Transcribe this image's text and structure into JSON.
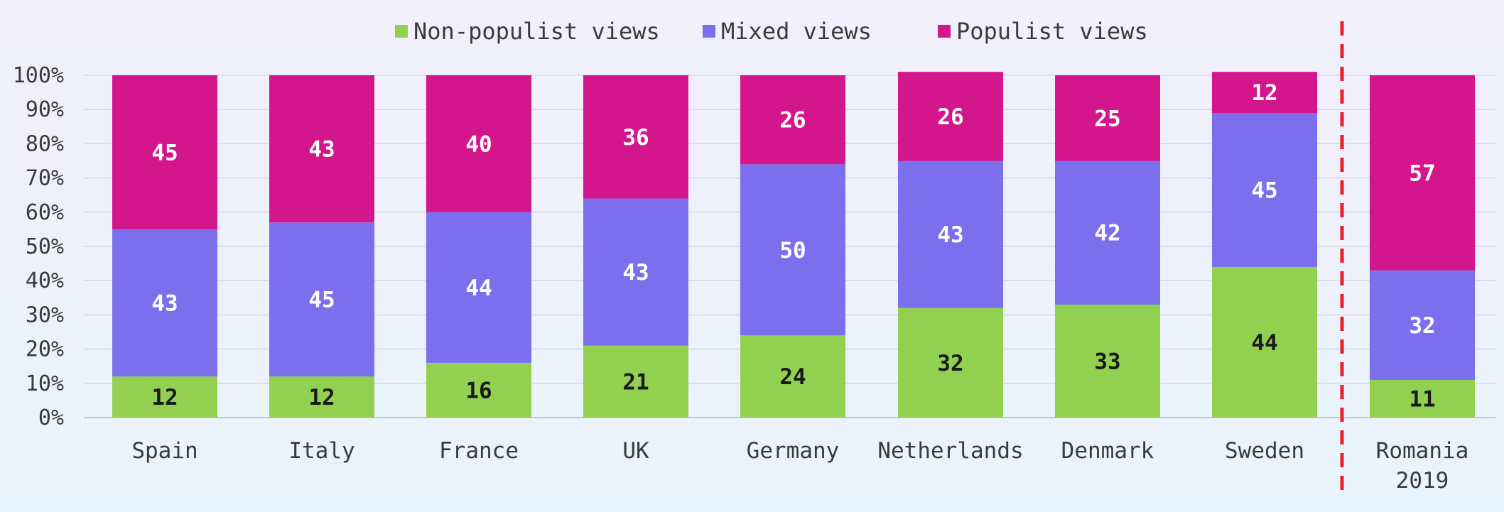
{
  "chart_data": {
    "type": "bar",
    "stacked": true,
    "categories": [
      "Spain",
      "Italy",
      "France",
      "UK",
      "Germany",
      "Netherlands",
      "Denmark",
      "Sweden",
      "Romania 2019"
    ],
    "category_lines": [
      [
        "Spain"
      ],
      [
        "Italy"
      ],
      [
        "France"
      ],
      [
        "UK"
      ],
      [
        "Germany"
      ],
      [
        "Netherlands"
      ],
      [
        "Denmark"
      ],
      [
        "Sweden"
      ],
      [
        "Romania",
        "2019"
      ]
    ],
    "series": [
      {
        "name": "Non-populist views",
        "color": "#92d050",
        "label_color": "#1a1a1a",
        "values": [
          12,
          12,
          16,
          21,
          24,
          32,
          33,
          44,
          11
        ]
      },
      {
        "name": "Mixed views",
        "color": "#7b6fee",
        "label_color": "#ffffff",
        "values": [
          43,
          45,
          44,
          43,
          50,
          43,
          42,
          45,
          32
        ]
      },
      {
        "name": "Populist views",
        "color": "#d3168c",
        "label_color": "#ffffff",
        "values": [
          45,
          43,
          40,
          36,
          26,
          26,
          25,
          12,
          57
        ]
      }
    ],
    "y_ticks": [
      "0%",
      "10%",
      "20%",
      "30%",
      "40%",
      "50%",
      "60%",
      "70%",
      "80%",
      "90%",
      "100%"
    ],
    "ylim": [
      0,
      100
    ],
    "grid": true,
    "legend_position": "top",
    "separator_before_index": 8,
    "separator_color": "#e8202a",
    "title": "",
    "xlabel": "",
    "ylabel": ""
  }
}
